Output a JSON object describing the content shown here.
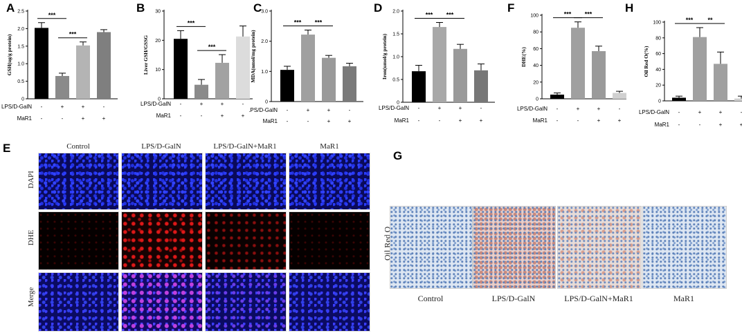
{
  "panels": {
    "A": "A",
    "B": "B",
    "C": "C",
    "D": "D",
    "F": "F",
    "H": "H",
    "E": "E",
    "G": "G"
  },
  "groups": {
    "lps": "LPS/D-GalN",
    "mar1": "MaR1"
  },
  "signs": {
    "lps": [
      "-",
      "+",
      "+",
      "-"
    ],
    "mar1": [
      "-",
      "-",
      "+",
      "+"
    ]
  },
  "chart_data": [
    {
      "id": "A",
      "type": "bar",
      "ylabel": "GSH(ug/g protein)",
      "ylim": [
        0,
        2.5
      ],
      "yticks": [
        0,
        0.5,
        1.0,
        1.5,
        2.0,
        2.5
      ],
      "values": [
        2.02,
        0.65,
        1.52,
        1.9
      ],
      "errors": [
        0.15,
        0.08,
        0.1,
        0.07
      ],
      "colors": [
        "#000000",
        "#8a8a8a",
        "#b4b4b4",
        "#7f7f7f"
      ],
      "sig": [
        {
          "from": 0,
          "to": 1,
          "label": "***"
        },
        {
          "from": 1,
          "to": 2,
          "label": "***"
        }
      ]
    },
    {
      "id": "B",
      "type": "bar",
      "ylabel": "Liver GSH/GSSG",
      "ylim": [
        0,
        30
      ],
      "yticks": [
        0,
        10,
        20,
        30
      ],
      "values": [
        20.5,
        4.8,
        12.3,
        21.3
      ],
      "errors": [
        2.8,
        1.8,
        2.8,
        3.6
      ],
      "colors": [
        "#000000",
        "#8a8a8a",
        "#a2a2a2",
        "#dcdcdc"
      ],
      "sig": [
        {
          "from": 0,
          "to": 1,
          "label": "***"
        },
        {
          "from": 1,
          "to": 2,
          "label": "***"
        }
      ]
    },
    {
      "id": "C",
      "type": "bar",
      "ylabel": "MDA(nmol/mg protein)",
      "ylim": [
        0,
        3
      ],
      "yticks": [
        0,
        1,
        2,
        3
      ],
      "values": [
        1.05,
        2.22,
        1.45,
        1.17
      ],
      "errors": [
        0.12,
        0.15,
        0.08,
        0.1
      ],
      "colors": [
        "#000000",
        "#a0a0a0",
        "#9a9a9a",
        "#7a7a7a"
      ],
      "sig": [
        {
          "from": 0,
          "to": 1,
          "label": "***"
        },
        {
          "from": 1,
          "to": 2,
          "label": "***"
        }
      ]
    },
    {
      "id": "D",
      "type": "bar",
      "ylabel": "Iron(umol/g protein)",
      "ylim": [
        0,
        2.0
      ],
      "yticks": [
        0,
        0.5,
        1.0,
        1.5,
        2.0
      ],
      "values": [
        0.68,
        1.65,
        1.17,
        0.7
      ],
      "errors": [
        0.13,
        0.1,
        0.1,
        0.14
      ],
      "colors": [
        "#000000",
        "#a8a8a8",
        "#9a9a9a",
        "#777777"
      ],
      "sig": [
        {
          "from": 0,
          "to": 1,
          "label": "***"
        },
        {
          "from": 1,
          "to": 2,
          "label": "***"
        }
      ]
    },
    {
      "id": "F",
      "type": "bar",
      "ylabel": "DHE(%)",
      "ylim": [
        0,
        100
      ],
      "yticks": [
        0,
        20,
        40,
        60,
        80,
        100
      ],
      "values": [
        5,
        85,
        57,
        7
      ],
      "errors": [
        2,
        7,
        6,
        2
      ],
      "colors": [
        "#000000",
        "#a0a0a0",
        "#9a9a9a",
        "#d0d0d0"
      ],
      "sig": [
        {
          "from": 0,
          "to": 1,
          "label": "***"
        },
        {
          "from": 1,
          "to": 2,
          "label": "***"
        }
      ]
    },
    {
      "id": "H",
      "type": "bar",
      "ylabel": "Oil Red O(%)",
      "ylim": [
        0,
        100
      ],
      "yticks": [
        0,
        20,
        40,
        60,
        80,
        100
      ],
      "values": [
        4,
        81,
        47,
        3
      ],
      "errors": [
        2,
        12,
        15,
        3
      ],
      "colors": [
        "#000000",
        "#a0a0a0",
        "#a0a0a0",
        "#d0d0d0"
      ],
      "sig": [
        {
          "from": 0,
          "to": 1,
          "label": "***"
        },
        {
          "from": 1,
          "to": 2,
          "label": "**"
        }
      ]
    }
  ],
  "dhe_grid": {
    "columns": [
      "Control",
      "LPS/D-GalN",
      "LPS/D-GalN+MaR1",
      "MaR1"
    ],
    "rows": [
      "DAPI",
      "DHE",
      "Merge"
    ]
  },
  "oil_grid": {
    "row_label": "Oil Red O",
    "columns": [
      "Control",
      "LPS/D-GalN",
      "LPS/D-GalN+MaR1",
      "MaR1"
    ]
  }
}
